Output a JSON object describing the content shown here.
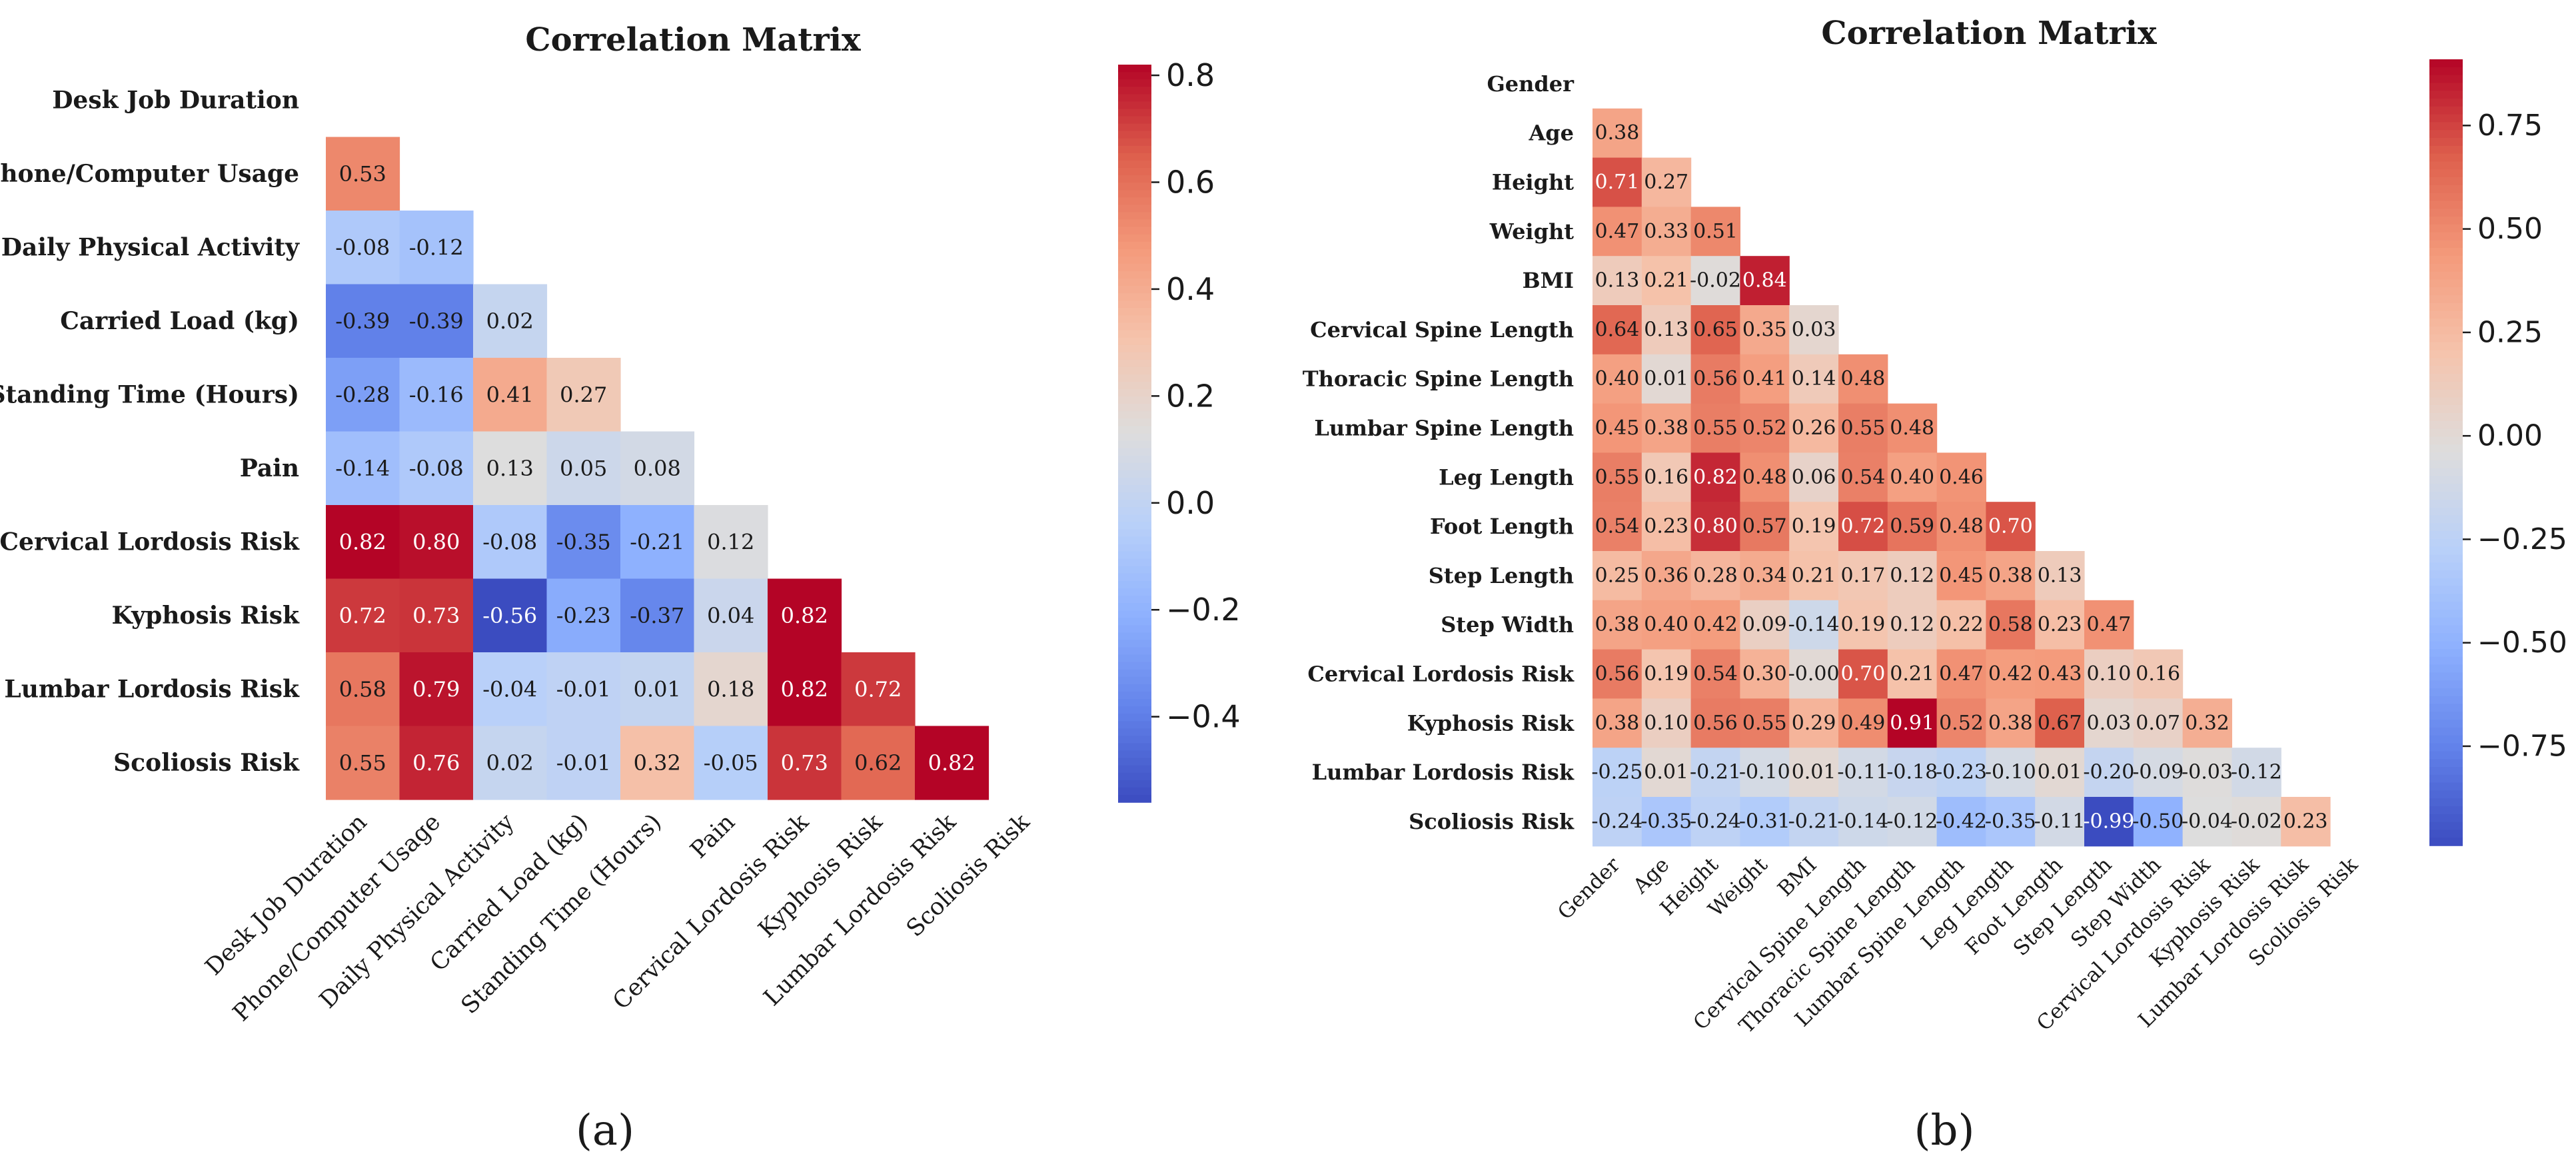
{
  "chart_data": [
    {
      "type": "heatmap",
      "panel_label": "(a)",
      "title": "Correlation Matrix",
      "variables": [
        "Desk Job Duration",
        "Phone/Computer Usage",
        "Daily Physical Activity",
        "Carried Load (kg)",
        "Standing Time (Hours)",
        "Pain",
        "Cervical Lordosis Risk",
        "Kyphosis Risk",
        "Lumbar Lordosis Risk",
        "Scoliosis Risk"
      ],
      "mask": "lower-triangle (diagonal hidden)",
      "values": [
        [],
        [
          0.53
        ],
        [
          -0.08,
          -0.12
        ],
        [
          -0.39,
          -0.39,
          0.02
        ],
        [
          -0.28,
          -0.16,
          0.41,
          0.27
        ],
        [
          -0.14,
          -0.08,
          0.13,
          0.05,
          0.08
        ],
        [
          0.82,
          0.8,
          -0.08,
          -0.35,
          -0.21,
          0.12
        ],
        [
          0.72,
          0.73,
          -0.56,
          -0.23,
          -0.37,
          0.04,
          0.82
        ],
        [
          0.58,
          0.79,
          -0.04,
          -0.01,
          0.01,
          0.18,
          0.82,
          0.72
        ],
        [
          0.55,
          0.76,
          0.02,
          -0.01,
          0.32,
          -0.05,
          0.73,
          0.62,
          0.82
        ]
      ],
      "value_labels": [
        [],
        [
          "0.53"
        ],
        [
          "-0.08",
          "-0.12"
        ],
        [
          "-0.39",
          "-0.39",
          "0.02"
        ],
        [
          "-0.28",
          "-0.16",
          "0.41",
          "0.27"
        ],
        [
          "-0.14",
          "-0.08",
          "0.13",
          "0.05",
          "0.08"
        ],
        [
          "0.82",
          "0.80",
          "-0.08",
          "-0.35",
          "-0.21",
          "0.12"
        ],
        [
          "0.72",
          "0.73",
          "-0.56",
          "-0.23",
          "-0.37",
          "0.04",
          "0.82"
        ],
        [
          "0.58",
          "0.79",
          "-0.04",
          "-0.01",
          "0.01",
          "0.18",
          "0.82",
          "0.72"
        ],
        [
          "0.55",
          "0.76",
          "0.02",
          "-0.01",
          "0.32",
          "-0.05",
          "0.73",
          "0.62",
          "0.82"
        ]
      ],
      "colormap": "coolwarm",
      "vmin": -0.56,
      "vmax": 0.82,
      "colorbar_ticks": [
        -0.4,
        -0.2,
        0.0,
        0.2,
        0.4,
        0.6,
        0.8
      ],
      "colorbar_tick_labels": [
        "−0.4",
        "−0.2",
        "0.0",
        "0.2",
        "0.4",
        "0.6",
        "0.8"
      ]
    },
    {
      "type": "heatmap",
      "panel_label": "(b)",
      "title": "Correlation Matrix",
      "variables": [
        "Gender",
        "Age",
        "Height",
        "Weight",
        "BMI",
        "Cervical Spine Length",
        "Thoracic Spine Length",
        "Lumbar Spine Length",
        "Leg Length",
        "Foot Length",
        "Step Length",
        "Step Width",
        "Cervical Lordosis Risk",
        "Kyphosis Risk",
        "Lumbar Lordosis Risk",
        "Scoliosis Risk"
      ],
      "mask": "lower-triangle (diagonal hidden)",
      "values": [
        [],
        [
          0.38
        ],
        [
          0.71,
          0.27
        ],
        [
          0.47,
          0.33,
          0.51
        ],
        [
          0.13,
          0.21,
          -0.02,
          0.84
        ],
        [
          0.64,
          0.13,
          0.65,
          0.35,
          0.03
        ],
        [
          0.4,
          0.01,
          0.56,
          0.41,
          0.14,
          0.48
        ],
        [
          0.45,
          0.38,
          0.55,
          0.52,
          0.26,
          0.55,
          0.48
        ],
        [
          0.55,
          0.16,
          0.82,
          0.48,
          0.06,
          0.54,
          0.4,
          0.46
        ],
        [
          0.54,
          0.23,
          0.8,
          0.57,
          0.19,
          0.72,
          0.59,
          0.48,
          0.7
        ],
        [
          0.25,
          0.36,
          0.28,
          0.34,
          0.21,
          0.17,
          0.12,
          0.45,
          0.38,
          0.13
        ],
        [
          0.38,
          0.4,
          0.42,
          0.09,
          -0.14,
          0.19,
          0.12,
          0.22,
          0.58,
          0.23,
          0.47
        ],
        [
          0.56,
          0.19,
          0.54,
          0.3,
          -0.0,
          0.7,
          0.21,
          0.47,
          0.42,
          0.43,
          0.1,
          0.16
        ],
        [
          0.38,
          0.1,
          0.56,
          0.55,
          0.29,
          0.49,
          0.91,
          0.52,
          0.38,
          0.67,
          0.03,
          0.07,
          0.32
        ],
        [
          -0.25,
          0.01,
          -0.21,
          -0.1,
          0.01,
          -0.11,
          -0.18,
          -0.23,
          -0.1,
          0.01,
          -0.2,
          -0.09,
          -0.03,
          -0.12
        ],
        [
          -0.24,
          -0.35,
          -0.24,
          -0.31,
          -0.21,
          -0.14,
          -0.12,
          -0.42,
          -0.35,
          -0.11,
          -0.99,
          -0.5,
          -0.04,
          -0.02,
          0.23
        ]
      ],
      "value_labels": [
        [],
        [
          "0.38"
        ],
        [
          "0.71",
          "0.27"
        ],
        [
          "0.47",
          "0.33",
          "0.51"
        ],
        [
          "0.13",
          "0.21",
          "-0.02",
          "0.84"
        ],
        [
          "0.64",
          "0.13",
          "0.65",
          "0.35",
          "0.03"
        ],
        [
          "0.40",
          "0.01",
          "0.56",
          "0.41",
          "0.14",
          "0.48"
        ],
        [
          "0.45",
          "0.38",
          "0.55",
          "0.52",
          "0.26",
          "0.55",
          "0.48"
        ],
        [
          "0.55",
          "0.16",
          "0.82",
          "0.48",
          "0.06",
          "0.54",
          "0.40",
          "0.46"
        ],
        [
          "0.54",
          "0.23",
          "0.80",
          "0.57",
          "0.19",
          "0.72",
          "0.59",
          "0.48",
          "0.70"
        ],
        [
          "0.25",
          "0.36",
          "0.28",
          "0.34",
          "0.21",
          "0.17",
          "0.12",
          "0.45",
          "0.38",
          "0.13"
        ],
        [
          "0.38",
          "0.40",
          "0.42",
          "0.09",
          "-0.14",
          "0.19",
          "0.12",
          "0.22",
          "0.58",
          "0.23",
          "0.47"
        ],
        [
          "0.56",
          "0.19",
          "0.54",
          "0.30",
          "-0.00",
          "0.70",
          "0.21",
          "0.47",
          "0.42",
          "0.43",
          "0.10",
          "0.16"
        ],
        [
          "0.38",
          "0.10",
          "0.56",
          "0.55",
          "0.29",
          "0.49",
          "0.91",
          "0.52",
          "0.38",
          "0.67",
          "0.03",
          "0.07",
          "0.32"
        ],
        [
          "-0.25",
          "0.01",
          "-0.21",
          "-0.10",
          "0.01",
          "-0.11",
          "-0.18",
          "-0.23",
          "-0.10",
          "0.01",
          "-0.20",
          "-0.09",
          "-0.03",
          "-0.12"
        ],
        [
          "-0.24",
          "-0.35",
          "-0.24",
          "-0.31",
          "-0.21",
          "-0.14",
          "-0.12",
          "-0.42",
          "-0.35",
          "-0.11",
          "-0.99",
          "-0.50",
          "-0.04",
          "-0.02",
          "0.23"
        ]
      ],
      "colormap": "coolwarm",
      "vmin": -0.99,
      "vmax": 0.91,
      "colorbar_ticks": [
        -0.75,
        -0.5,
        -0.25,
        0.0,
        0.25,
        0.5,
        0.75
      ],
      "colorbar_tick_labels": [
        "−0.75",
        "−0.50",
        "−0.25",
        "0.00",
        "0.25",
        "0.50",
        "0.75"
      ]
    }
  ]
}
